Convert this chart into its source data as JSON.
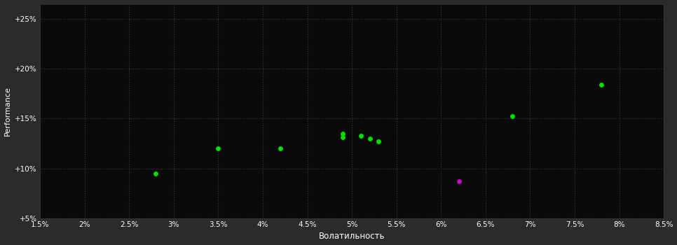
{
  "background_color": "#2b2b2b",
  "plot_bg_color": "#0a0a0a",
  "grid_color": "#3a3a3a",
  "text_color": "#ffffff",
  "xlabel": "Волатильность",
  "ylabel": "Performance",
  "xlim": [
    0.015,
    0.085
  ],
  "ylim": [
    0.05,
    0.265
  ],
  "xticks": [
    0.015,
    0.02,
    0.025,
    0.03,
    0.035,
    0.04,
    0.045,
    0.05,
    0.055,
    0.06,
    0.065,
    0.07,
    0.075,
    0.08,
    0.085
  ],
  "yticks": [
    0.05,
    0.1,
    0.15,
    0.2,
    0.25
  ],
  "ytick_labels": [
    "+5%",
    "+10%",
    "+15%",
    "+20%",
    "+25%"
  ],
  "xtick_labels": [
    "1.5%",
    "2%",
    "2.5%",
    "3%",
    "3.5%",
    "4%",
    "4.5%",
    "5%",
    "5.5%",
    "6%",
    "6.5%",
    "7%",
    "7.5%",
    "8%",
    "8.5%"
  ],
  "green_points": [
    [
      0.028,
      0.095
    ],
    [
      0.035,
      0.12
    ],
    [
      0.042,
      0.12
    ],
    [
      0.049,
      0.135
    ],
    [
      0.049,
      0.131
    ],
    [
      0.051,
      0.133
    ],
    [
      0.052,
      0.13
    ],
    [
      0.053,
      0.127
    ],
    [
      0.068,
      0.152
    ],
    [
      0.078,
      0.184
    ]
  ],
  "purple_points": [
    [
      0.062,
      0.087
    ]
  ],
  "green_color": "#00dd00",
  "purple_color": "#cc00cc",
  "point_size": 25,
  "xlabel_fontsize": 8.5,
  "ylabel_fontsize": 8,
  "tick_fontsize": 7.5
}
